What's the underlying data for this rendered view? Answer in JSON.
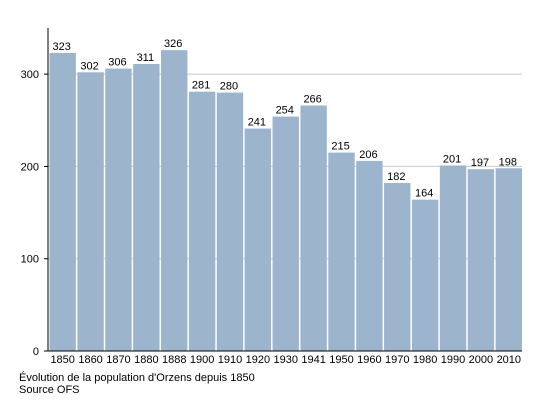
{
  "colors": {
    "bar": "#9cb4cc",
    "axis": "#000000",
    "grid": "#c8c8c8",
    "text": "#000000",
    "background": "#ffffff"
  },
  "caption": {
    "title": "Évolution de la population d'Orzens depuis 1850",
    "source": "Source OFS"
  },
  "chart_data": {
    "type": "bar",
    "title": "",
    "xlabel": "",
    "ylabel": "",
    "categories": [
      "1850",
      "1860",
      "1870",
      "1880",
      "1888",
      "1900",
      "1910",
      "1920",
      "1930",
      "1941",
      "1950",
      "1960",
      "1970",
      "1980",
      "1990",
      "2000",
      "2010"
    ],
    "values": [
      323,
      302,
      306,
      311,
      326,
      281,
      280,
      241,
      254,
      266,
      215,
      206,
      182,
      164,
      201,
      197,
      198
    ],
    "ylim": [
      0,
      350
    ],
    "yticks": [
      0,
      100,
      200,
      300
    ],
    "grid": true,
    "data_labels": true,
    "legend": "none"
  }
}
